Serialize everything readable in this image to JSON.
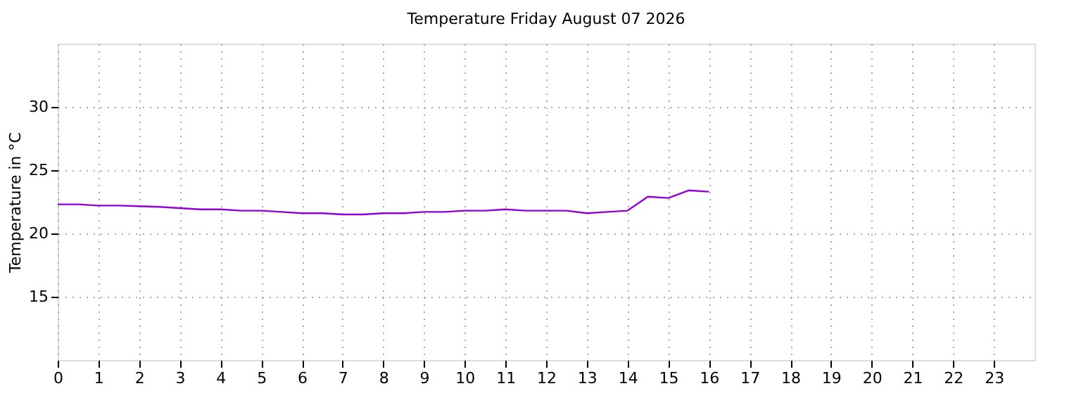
{
  "chart_data": {
    "type": "line",
    "title": "Temperature Friday August 07 2026",
    "ylabel": "Temperature in °C",
    "x": [
      0,
      0.5,
      1,
      1.5,
      2,
      2.5,
      3,
      3.5,
      4,
      4.5,
      5,
      5.5,
      6,
      6.5,
      7,
      7.5,
      8,
      8.5,
      9,
      9.5,
      10,
      10.5,
      11,
      11.5,
      12,
      12.5,
      13,
      13.5,
      14,
      14.5,
      15,
      15.5,
      16
    ],
    "series": [
      {
        "color": "#9400d3",
        "values": [
          22.3,
          22.3,
          22.2,
          22.2,
          22.15,
          22.1,
          22.0,
          21.9,
          21.9,
          21.8,
          21.8,
          21.7,
          21.6,
          21.6,
          21.5,
          21.5,
          21.6,
          21.6,
          21.7,
          21.7,
          21.8,
          21.8,
          21.9,
          21.8,
          21.8,
          21.8,
          21.6,
          21.7,
          21.8,
          22.9,
          22.8,
          23.4,
          23.3
        ]
      }
    ],
    "xlim": [
      0,
      24
    ],
    "xticks": [
      0,
      1,
      2,
      3,
      4,
      5,
      6,
      7,
      8,
      9,
      10,
      11,
      12,
      13,
      14,
      15,
      16,
      17,
      18,
      19,
      20,
      21,
      22,
      23
    ],
    "ylim": [
      10,
      35
    ],
    "yticks": [
      15,
      20,
      25,
      30
    ],
    "grid": true,
    "marker": "none",
    "line_style": "solid"
  }
}
